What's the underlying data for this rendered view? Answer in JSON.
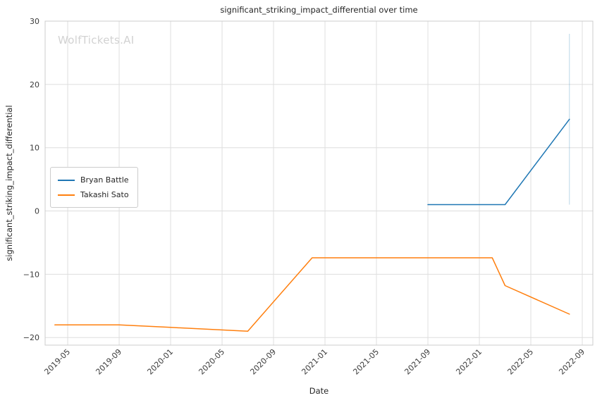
{
  "watermark": "WolfTickets.AI",
  "chart_data": {
    "type": "line",
    "title": "significant_striking_impact_differential over time",
    "xlabel": "Date",
    "ylabel": "significant_striking_impact_differential",
    "grid": true,
    "legend_position": "center left",
    "x_ticks": [
      "2019-05",
      "2019-09",
      "2020-01",
      "2020-05",
      "2020-09",
      "2021-01",
      "2021-05",
      "2021-09",
      "2022-01",
      "2022-05",
      "2022-09"
    ],
    "y_ticks": [
      -20,
      -10,
      0,
      10,
      20,
      30
    ],
    "xlim_numeric": [
      2019.187,
      2022.735
    ],
    "ylim": [
      -21.2,
      30
    ],
    "series": [
      {
        "name": "Bryan Battle",
        "color": "#1f77b4",
        "points": [
          [
            "2021-09",
            1
          ],
          [
            "2022-03",
            1
          ],
          [
            "2022-08",
            14.5
          ]
        ]
      },
      {
        "name": "Takashi Sato",
        "color": "#ff7f0e",
        "points": [
          [
            "2019-04",
            -18
          ],
          [
            "2019-09",
            -18
          ],
          [
            "2020-01",
            -18.4
          ],
          [
            "2020-07",
            -19
          ],
          [
            "2020-12",
            -7.4
          ],
          [
            "2022-02",
            -7.4
          ],
          [
            "2022-03",
            -11.8
          ],
          [
            "2022-08",
            -16.3
          ]
        ]
      }
    ],
    "error_bar": {
      "series": "Bryan Battle",
      "x": "2022-08",
      "y_low": 1,
      "y_high": 28,
      "color": "rgba(31,119,180,0.3)"
    },
    "colors": {
      "grid": "#dedede",
      "spine": "#cccccc",
      "tick_text": "#3a3a3a"
    }
  }
}
